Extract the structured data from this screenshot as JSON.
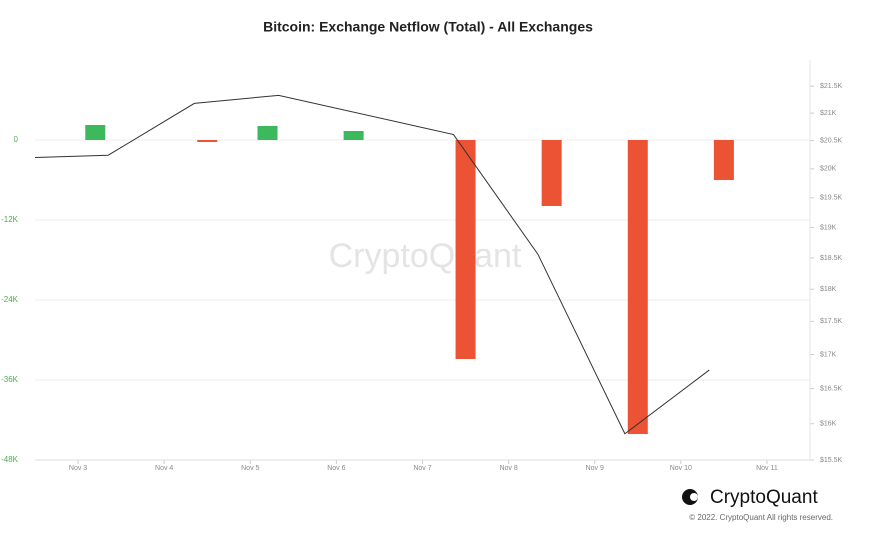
{
  "chart_data": {
    "type": "bar-line",
    "title": "Bitcoin: Exchange Netflow (Total) - All Exchanges",
    "watermark": "CryptoQuant",
    "brand": "CryptoQuant",
    "copyright": "© 2022. CryptoQuant All rights reserved.",
    "xlim": [
      2.5,
      11.5
    ],
    "xticks": [
      {
        "value": 3,
        "label": "Nov 3"
      },
      {
        "value": 4,
        "label": "Nov 4"
      },
      {
        "value": 5,
        "label": "Nov 5"
      },
      {
        "value": 6,
        "label": "Nov 6"
      },
      {
        "value": 7,
        "label": "Nov 7"
      },
      {
        "value": 8,
        "label": "Nov 8"
      },
      {
        "value": 9,
        "label": "Nov 9"
      },
      {
        "value": 10,
        "label": "Nov 10"
      },
      {
        "value": 11,
        "label": "Nov 11"
      }
    ],
    "ylim": [
      -48000,
      12000
    ],
    "yticks": [
      0,
      {
        "value": -12000,
        "label": "-12K"
      },
      {
        "value": -24000,
        "label": "-24K"
      },
      {
        "value": -36000,
        "label": "-36K"
      },
      {
        "value": -48000,
        "label": "-48K"
      }
    ],
    "y2lim": [
      15500,
      22000
    ],
    "y2log": true,
    "y2ticks": [
      {
        "value": 21500,
        "label": "$21.5K"
      },
      {
        "value": 21000,
        "label": "$21K"
      },
      {
        "value": 20500,
        "label": "$20.5K"
      },
      {
        "value": 20000,
        "label": "$20K"
      },
      {
        "value": 19500,
        "label": "$19.5K"
      },
      {
        "value": 19000,
        "label": "$19K"
      },
      {
        "value": 18500,
        "label": "$18.5K"
      },
      {
        "value": 18000,
        "label": "$18K"
      },
      {
        "value": 17500,
        "label": "$17.5K"
      },
      {
        "value": 17000,
        "label": "$17K"
      },
      {
        "value": 16500,
        "label": "$16.5K"
      },
      {
        "value": 16000,
        "label": "$16K"
      },
      {
        "value": 15500,
        "label": "$15.5K"
      }
    ],
    "grid": true,
    "series": [
      {
        "type": "bar",
        "positive_color": "#3cb95c",
        "negative_color": "#ec5234",
        "x": [
          3.2,
          4.5,
          5.2,
          6.2,
          7.5,
          8.5,
          9.5,
          10.5
        ],
        "values": [
          2250,
          -300,
          2100,
          1350,
          -32850,
          -9900,
          -44100,
          -6000
        ]
      },
      {
        "type": "line",
        "axis": "y2",
        "color": "#333333",
        "x": [
          2.5,
          3.35,
          4.35,
          5.33,
          7.36,
          8.34,
          9.35,
          10.33
        ],
        "values": [
          20200,
          20240,
          21180,
          21330,
          20610,
          18560,
          15860,
          16770
        ]
      }
    ]
  }
}
